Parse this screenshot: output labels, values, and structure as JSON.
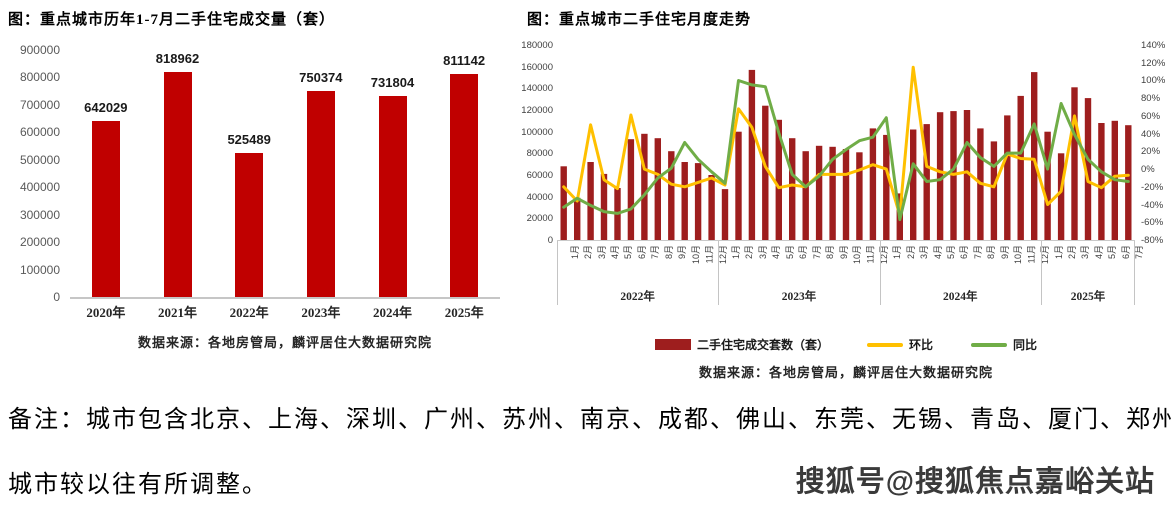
{
  "left_chart": {
    "title": "图：重点城市历年1-7月二手住宅成交量（套）",
    "source": "数据来源：各地房管局，麟评居住大数据研究院",
    "y_ticks": [
      "900000",
      "800000",
      "700000",
      "600000",
      "500000",
      "400000",
      "300000",
      "200000",
      "100000",
      "0"
    ],
    "bar_color": "#c00000"
  },
  "right_chart": {
    "title": "图：重点城市二手住宅月度走势",
    "source": "数据来源：各地房管局，麟评居住大数据研究院",
    "left_ticks": [
      "180000",
      "160000",
      "140000",
      "120000",
      "100000",
      "80000",
      "60000",
      "40000",
      "20000",
      "0"
    ],
    "right_ticks": [
      "140%",
      "120%",
      "100%",
      "80%",
      "60%",
      "40%",
      "20%",
      "0%",
      "-20%",
      "-40%",
      "-60%",
      "-80%"
    ],
    "legend": [
      {
        "label": "二手住宅成交套数（套）",
        "color": "#9e1e1e",
        "type": "bar"
      },
      {
        "label": "环比",
        "color": "#ffc000",
        "type": "line"
      },
      {
        "label": "同比",
        "color": "#70ad47",
        "type": "line"
      }
    ]
  },
  "chart_data": [
    {
      "type": "bar",
      "title": "重点城市历年1-7月二手住宅成交量（套）",
      "categories": [
        "2020年",
        "2021年",
        "2022年",
        "2023年",
        "2024年",
        "2025年"
      ],
      "values": [
        642029,
        818962,
        525489,
        750374,
        731804,
        811142
      ],
      "data_labels": [
        "642029",
        "818962",
        "525489",
        "750374",
        "731804",
        "811142"
      ],
      "ylim": [
        0,
        900000
      ],
      "ytick_step": 100000,
      "bar_color": "#c00000"
    },
    {
      "type": "combo",
      "title": "重点城市二手住宅月度走势",
      "years": [
        "2022年",
        "2023年",
        "2024年",
        "2025年"
      ],
      "months_per_year": [
        12,
        12,
        12,
        7
      ],
      "month_labels": [
        "1月",
        "2月",
        "3月",
        "4月",
        "5月",
        "6月",
        "7月",
        "8月",
        "9月",
        "10月",
        "11月",
        "12月"
      ],
      "left_axis": {
        "min": 0,
        "max": 180000,
        "step": 20000
      },
      "right_axis": {
        "min": -80,
        "max": 140,
        "step": 20,
        "unit": "%"
      },
      "series": [
        {
          "name": "二手住宅成交套数（套）",
          "type": "bar",
          "axis": "left",
          "color": "#9e1e1e",
          "values": [
            68000,
            39000,
            72000,
            61000,
            48000,
            93000,
            98000,
            94000,
            82000,
            72000,
            71000,
            60000,
            47000,
            100000,
            157000,
            124000,
            111000,
            94000,
            82000,
            87000,
            86000,
            84000,
            81000,
            103000,
            97000,
            43000,
            102000,
            107000,
            118000,
            119000,
            120000,
            103000,
            91000,
            115000,
            133000,
            155000,
            100000,
            80000,
            141000,
            131000,
            108000,
            110000,
            106000
          ]
        },
        {
          "name": "环比",
          "type": "line",
          "axis": "right",
          "color": "#ffc000",
          "values": [
            -20,
            -36,
            50,
            -12,
            -22,
            61,
            0,
            -6,
            -17,
            -20,
            -15,
            -10,
            -18,
            68,
            47,
            3,
            -21,
            -18,
            -20,
            -6,
            -6,
            -6,
            -1,
            5,
            0,
            -52,
            115,
            3,
            -3,
            -6,
            -3,
            -16,
            -20,
            17,
            12,
            11,
            -40,
            -25,
            60,
            -14,
            -21,
            -8,
            -7
          ]
        },
        {
          "name": "同比",
          "type": "line",
          "axis": "right",
          "color": "#70ad47",
          "values": [
            -43,
            -33,
            -41,
            -48,
            -50,
            -45,
            -29,
            -10,
            1,
            30,
            11,
            -3,
            -16,
            100,
            95,
            93,
            41,
            -6,
            -20,
            -8,
            11,
            22,
            32,
            36,
            58,
            -57,
            6,
            -14,
            -12,
            0,
            30,
            13,
            3,
            18,
            18,
            51,
            0,
            74,
            39,
            11,
            -3,
            -12,
            -14
          ]
        }
      ]
    }
  ],
  "footnote": {
    "line1": "备注：城市包含北京、上海、深圳、广州、苏州、南京、成都、佛山、东莞、无锡、青岛、厦门、郑州，",
    "line2": "城市较以往有所调整。"
  },
  "watermark": "搜狐号@搜狐焦点嘉峪关站"
}
